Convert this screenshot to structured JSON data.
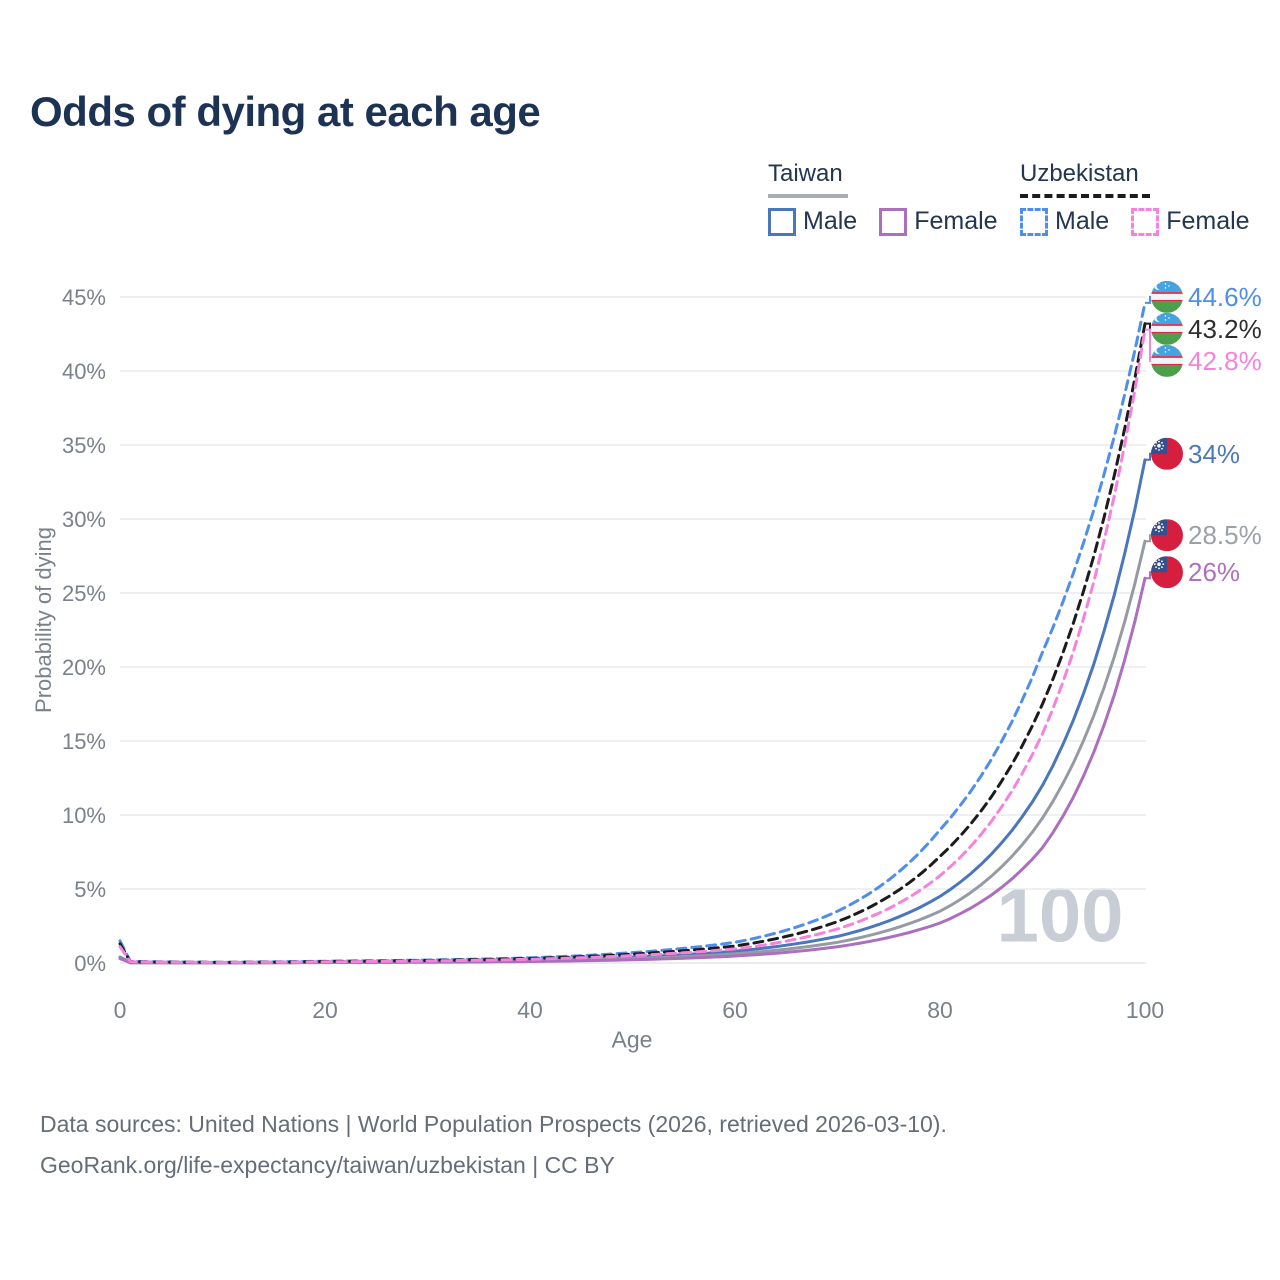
{
  "title": "Odds of dying at each age",
  "watermark": "100",
  "axes": {
    "x_label": "Age",
    "y_label": "Probability of dying"
  },
  "legend": {
    "groups": [
      {
        "name": "Taiwan",
        "line_style": "solid",
        "line_color": "#a9aeb5",
        "items": [
          {
            "label": "Male",
            "color": "#4a76bb",
            "dashed": false
          },
          {
            "label": "Female",
            "color": "#ab6fbd",
            "dashed": false
          }
        ]
      },
      {
        "name": "Uzbekistan",
        "line_style": "dashed",
        "line_color": "#1c1c1c",
        "items": [
          {
            "label": "Male",
            "color": "#4f8fea",
            "dashed": true
          },
          {
            "label": "Female",
            "color": "#f583de",
            "dashed": true
          }
        ]
      }
    ]
  },
  "footer": {
    "line1": "Data sources: United Nations | World Population Prospects (2026, retrieved 2026-03-10).",
    "line2": "GeoRank.org/life-expectancy/taiwan/uzbekistan | CC BY"
  },
  "chart_data": {
    "type": "line",
    "title": "Odds of dying at each age",
    "xlabel": "Age",
    "ylabel": "Probability of dying",
    "xlim": [
      0,
      100
    ],
    "ylim": [
      0,
      46
    ],
    "x_ticks": [
      0,
      20,
      40,
      60,
      80,
      100
    ],
    "y_ticks": [
      "0%",
      "5%",
      "10%",
      "15%",
      "20%",
      "25%",
      "30%",
      "35%",
      "40%",
      "45%"
    ],
    "grid": "horizontal",
    "legend_position": "top-right",
    "x": [
      0,
      1,
      10,
      20,
      30,
      40,
      50,
      60,
      70,
      80,
      90,
      100
    ],
    "series": [
      {
        "name": "Uzbekistan Male",
        "country": "Uzbekistan",
        "sex": "male",
        "color": "#4f8fea",
        "label_color": "#4f8fea",
        "dash": true,
        "flag": "uz",
        "end_label": "44.6%",
        "values": [
          1.5,
          0.1,
          0.05,
          0.12,
          0.2,
          0.35,
          0.7,
          1.4,
          3.5,
          9.0,
          21,
          44.6
        ]
      },
      {
        "name": "Uzbekistan Both sexes",
        "country": "Uzbekistan",
        "sex": "all",
        "color": "#1c1c1c",
        "label_color": "#2e2e2e",
        "dash": true,
        "flag": "uz",
        "end_label": "43.2%",
        "values": [
          1.3,
          0.09,
          0.04,
          0.1,
          0.17,
          0.3,
          0.6,
          1.15,
          2.8,
          7.2,
          17.5,
          43.2
        ]
      },
      {
        "name": "Uzbekistan Female",
        "country": "Uzbekistan",
        "sex": "female",
        "color": "#f583de",
        "label_color": "#f583de",
        "dash": true,
        "flag": "uz",
        "end_label": "42.8%",
        "values": [
          1.1,
          0.08,
          0.035,
          0.08,
          0.14,
          0.25,
          0.5,
          0.95,
          2.3,
          5.9,
          15.5,
          42.8
        ]
      },
      {
        "name": "Taiwan Male",
        "country": "Taiwan",
        "sex": "male",
        "color": "#4a76bb",
        "label_color": "#4e79b8",
        "dash": false,
        "flag": "tw",
        "end_label": "34%",
        "values": [
          0.4,
          0.03,
          0.015,
          0.05,
          0.09,
          0.18,
          0.4,
          0.8,
          1.8,
          4.5,
          12,
          34
        ]
      },
      {
        "name": "Taiwan Both sexes",
        "country": "Taiwan",
        "sex": "all",
        "color": "#969ba3",
        "label_color": "#9aa1a9",
        "dash": false,
        "flag": "tw",
        "end_label": "28.5%",
        "values": [
          0.35,
          0.025,
          0.012,
          0.04,
          0.07,
          0.14,
          0.3,
          0.62,
          1.4,
          3.5,
          9.8,
          28.5
        ]
      },
      {
        "name": "Taiwan Female",
        "country": "Taiwan",
        "sex": "female",
        "color": "#ab6fbd",
        "label_color": "#b06fc0",
        "dash": false,
        "flag": "tw",
        "end_label": "26%",
        "values": [
          0.3,
          0.02,
          0.01,
          0.03,
          0.05,
          0.1,
          0.22,
          0.47,
          1.1,
          2.7,
          7.8,
          26
        ]
      }
    ]
  }
}
